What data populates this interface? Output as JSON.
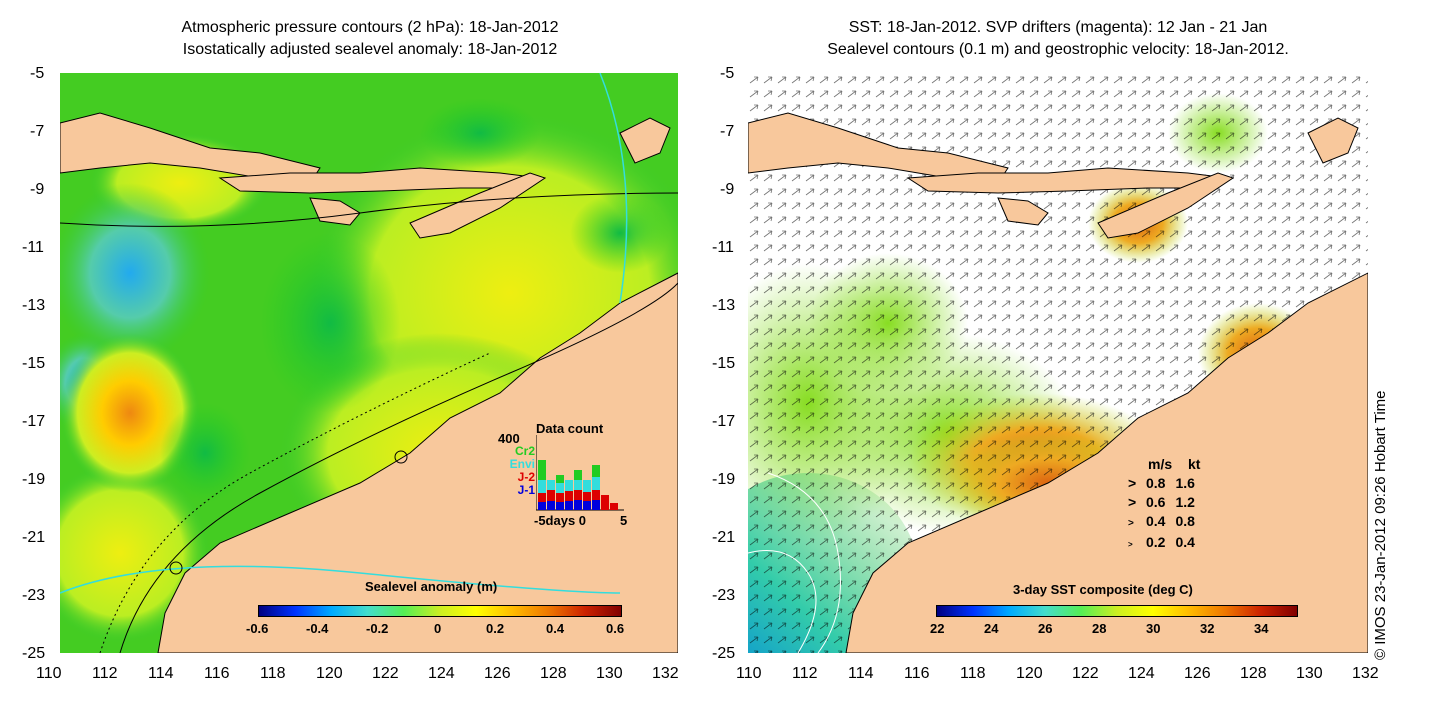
{
  "left_panel": {
    "title_line1": "Atmospheric pressure contours (2 hPa): 18-Jan-2012",
    "title_line2": "Isostatically adjusted sealevel anomaly: 18-Jan-2012",
    "colorbar": {
      "label": "Sealevel anomaly (m)",
      "ticks": [
        "-0.6",
        "-0.4",
        "-0.2",
        "0",
        "0.2",
        "0.4",
        "0.6"
      ]
    },
    "data_count": {
      "title": "Data count",
      "y_max_label": "400",
      "x_label": "-5days 0",
      "x_end": "5",
      "legend": [
        {
          "label": "Cr2",
          "color": "#22cc22"
        },
        {
          "label": "Envi",
          "color": "#33dddd"
        },
        {
          "label": "J-2",
          "color": "#dd0000"
        },
        {
          "label": "J-1",
          "color": "#0000dd"
        }
      ]
    }
  },
  "right_panel": {
    "title_line1": "SST: 18-Jan-2012. SVP drifters (magenta): 12 Jan - 21 Jan",
    "title_line2": "Sealevel contours (0.1 m) and geostrophic velocity: 18-Jan-2012.",
    "colorbar": {
      "label": "3-day SST composite (deg C)",
      "ticks": [
        "22",
        "24",
        "26",
        "28",
        "30",
        "32",
        "34"
      ]
    },
    "velocity_legend": {
      "header_ms": "m/s",
      "header_kt": "kt",
      "rows": [
        {
          "ms": "0.8",
          "kt": "1.6"
        },
        {
          "ms": "0.6",
          "kt": "1.2"
        },
        {
          "ms": "0.4",
          "kt": "0.8"
        },
        {
          "ms": "0.2",
          "kt": "0.4"
        }
      ]
    }
  },
  "axes": {
    "lat_ticks": [
      "-5",
      "-7",
      "-9",
      "-11",
      "-13",
      "-15",
      "-17",
      "-19",
      "-21",
      "-23",
      "-25"
    ],
    "lon_ticks": [
      "110",
      "112",
      "114",
      "116",
      "118",
      "120",
      "122",
      "124",
      "126",
      "128",
      "130",
      "132"
    ]
  },
  "credit": "© IMOS 23-Jan-2012 09:26 Hobart Time",
  "colors": {
    "land": "#f8c89c",
    "ocean_base": "#22cc22",
    "sst_white": "#ffffff"
  }
}
